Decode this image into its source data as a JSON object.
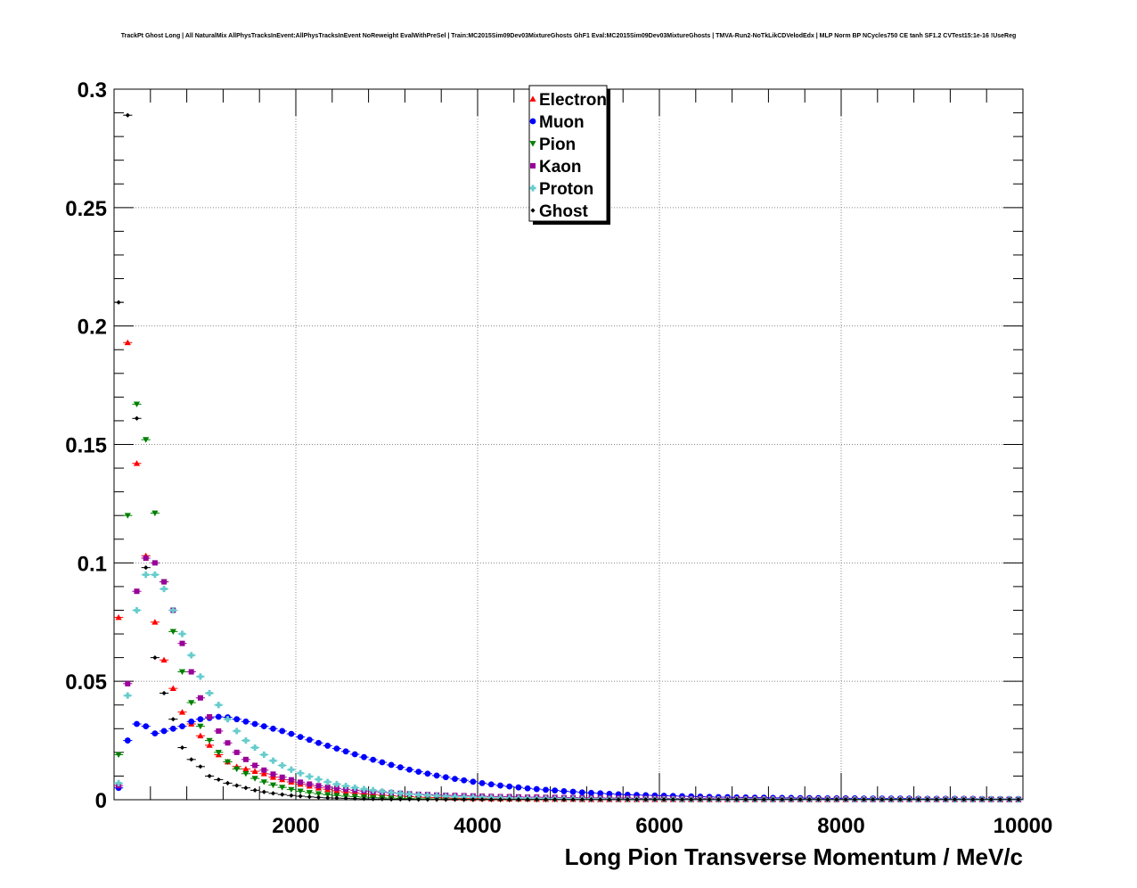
{
  "chart_data": {
    "type": "scatter",
    "title": "TrackPt Ghost Long | All NaturalMix AllPhysTracksInEvent:AllPhysTracksInEvent NoReweight EvalWithPreSel | Train:MC2015Sim09Dev03MixtureGhosts GhF1 Eval:MC2015Sim09Dev03MixtureGhosts | TMVA-Run2-NoTkLikCDVelodEdx | MLP Norm BP NCycles750 CE tanh SF1.2 CVTest15:1e-16 !UseReg",
    "xlabel": "Long Pion Transverse Momentum / MeV/c",
    "ylabel": "",
    "xlim": [
      0,
      10000
    ],
    "ylim": [
      0,
      0.3
    ],
    "grid": true,
    "legend_position": "top-center",
    "x_ticks": [
      2000,
      4000,
      6000,
      8000,
      10000
    ],
    "x_tick_labels": [
      "2000",
      "4000",
      "6000",
      "8000",
      "10000"
    ],
    "y_ticks": [
      0,
      0.05,
      0.1,
      0.15,
      0.2,
      0.25,
      0.3
    ],
    "y_tick_labels": [
      "0",
      "0.05",
      "0.1",
      "0.15",
      "0.2",
      "0.25",
      "0.3"
    ],
    "x": [
      50,
      150,
      250,
      350,
      450,
      550,
      650,
      750,
      850,
      950,
      1050,
      1150,
      1250,
      1350,
      1450,
      1550,
      1650,
      1750,
      1850,
      1950,
      2050,
      2150,
      2250,
      2350,
      2450,
      2550,
      2650,
      2750,
      2850,
      2950,
      3050,
      3150,
      3250,
      3350,
      3450,
      3550,
      3650,
      3750,
      3850,
      3950,
      4050,
      4150,
      4250,
      4350,
      4450,
      4550,
      4650,
      4750,
      4850,
      4950,
      5050,
      5150,
      5250,
      5350,
      5450,
      5550,
      5650,
      5750,
      5850,
      5950,
      6050,
      6150,
      6250,
      6350,
      6450,
      6550,
      6650,
      6750,
      6850,
      6950,
      7050,
      7150,
      7250,
      7350,
      7450,
      7550,
      7650,
      7750,
      7850,
      7950,
      8050,
      8150,
      8250,
      8350,
      8450,
      8550,
      8650,
      8750,
      8850,
      8950,
      9050,
      9150,
      9250,
      9350,
      9450,
      9550,
      9650,
      9750,
      9850,
      9950
    ],
    "series": [
      {
        "name": "Electron",
        "color": "#ff0000",
        "marker": "triangle-up",
        "values": [
          0.077,
          0.193,
          0.142,
          0.103,
          0.075,
          0.059,
          0.047,
          0.037,
          0.032,
          0.027,
          0.023,
          0.019,
          0.016,
          0.014,
          0.013,
          0.012,
          0.011,
          0.0095,
          0.0085,
          0.0075,
          0.0066,
          0.0058,
          0.005,
          0.0044,
          0.0038,
          0.0033,
          0.0029,
          0.0025,
          0.0022,
          0.0019,
          0.0017,
          0.0015,
          0.0013,
          0.0011,
          0.001,
          0.0009,
          0.0008,
          0.0007,
          0.0006,
          0.0005,
          0.0005,
          0.0004,
          0.0004,
          0.0003,
          0.0003,
          0.0003,
          0.0002,
          0.0002,
          0.0002,
          0.0002,
          0.0002,
          0.0001,
          0.0001,
          0.0001,
          0.0001,
          0.0001,
          0.0001,
          0.0001,
          0.0001,
          0.0001,
          0.0001,
          0.0001,
          0.0001,
          0.0001,
          0.0001,
          0.0001,
          0.0001,
          0.0001,
          0.0001,
          0.0001,
          0.0001,
          0.0001,
          0.0001,
          0.0001,
          0.0001,
          0.0001,
          0.0001,
          0.0001,
          0.0001,
          0.0001,
          0.0001,
          0.0001,
          0.0001,
          0.0001,
          0.0001,
          0.0001,
          0.0001,
          0.0001,
          0.0001,
          0.0001,
          0.0001,
          0.0001,
          0.0001,
          0.0001,
          0.0001,
          0.0001,
          0.0001,
          0.0001,
          0.0001,
          0.0001
        ]
      },
      {
        "name": "Muon",
        "color": "#0000ff",
        "marker": "circle",
        "values": [
          0.005,
          0.025,
          0.032,
          0.031,
          0.028,
          0.029,
          0.03,
          0.031,
          0.033,
          0.034,
          0.0345,
          0.035,
          0.0348,
          0.034,
          0.033,
          0.032,
          0.031,
          0.03,
          0.029,
          0.0278,
          0.0265,
          0.0253,
          0.024,
          0.0228,
          0.0216,
          0.0204,
          0.0192,
          0.018,
          0.0169,
          0.0158,
          0.0147,
          0.0137,
          0.0127,
          0.0118,
          0.011,
          0.0102,
          0.0095,
          0.0088,
          0.0082,
          0.0076,
          0.007,
          0.0065,
          0.006,
          0.0056,
          0.0052,
          0.0048,
          0.0045,
          0.0042,
          0.0039,
          0.0036,
          0.0034,
          0.0031,
          0.0029,
          0.0027,
          0.0025,
          0.0023,
          0.0021,
          0.002,
          0.0019,
          0.0018,
          0.0017,
          0.0016,
          0.0015,
          0.0014,
          0.0013,
          0.0012,
          0.0011,
          0.0011,
          0.001,
          0.001,
          0.0009,
          0.0009,
          0.0008,
          0.0008,
          0.0008,
          0.0007,
          0.0007,
          0.0007,
          0.0006,
          0.0006,
          0.0006,
          0.0006,
          0.0005,
          0.0005,
          0.0005,
          0.0005,
          0.0005,
          0.0005,
          0.0004,
          0.0004,
          0.0004,
          0.0004,
          0.0004,
          0.0004,
          0.0004,
          0.0003,
          0.0003,
          0.0003,
          0.0003,
          0.0003
        ]
      },
      {
        "name": "Pion",
        "color": "#008000",
        "marker": "triangle-down",
        "values": [
          0.019,
          0.12,
          0.167,
          0.152,
          0.121,
          0.092,
          0.071,
          0.054,
          0.041,
          0.031,
          0.025,
          0.02,
          0.016,
          0.013,
          0.011,
          0.009,
          0.0075,
          0.0062,
          0.0052,
          0.0043,
          0.0036,
          0.003,
          0.0025,
          0.0021,
          0.0018,
          0.0015,
          0.0013,
          0.0011,
          0.0009,
          0.0008,
          0.0007,
          0.0006,
          0.0005,
          0.0004,
          0.0004,
          0.0003,
          0.0003,
          0.0003,
          0.0002,
          0.0002,
          0.0002,
          0.0002,
          0.0001,
          0.0001,
          0.0001,
          0.0001,
          0.0001,
          0.0001,
          0.0001,
          0.0001,
          0.0001,
          0.0001,
          0.0001,
          0.0001,
          0.0001,
          0.0001,
          0.0001,
          0.0001,
          0.0001,
          0.0001,
          0.0001,
          0.0001,
          0.0001,
          0.0001,
          0.0001,
          0.0001,
          0.0001,
          0.0001,
          0.0001,
          0.0001,
          0.0001,
          0.0001,
          0.0001,
          0.0001,
          0.0001,
          0.0001,
          0.0001,
          0.0001,
          0.0001,
          0.0001,
          0.0001,
          0.0001,
          0.0001,
          0.0001,
          0.0001,
          0.0001,
          0.0001,
          0.0001,
          0.0001,
          0.0001,
          0.0001,
          0.0001,
          0.0001,
          0.0001,
          0.0001,
          0.0001,
          0.0001,
          0.0001,
          0.0001,
          0.0001
        ]
      },
      {
        "name": "Kaon",
        "color": "#990099",
        "marker": "square",
        "values": [
          0.006,
          0.049,
          0.088,
          0.102,
          0.1,
          0.092,
          0.08,
          0.066,
          0.054,
          0.043,
          0.035,
          0.029,
          0.024,
          0.02,
          0.017,
          0.0145,
          0.0125,
          0.0108,
          0.0095,
          0.0084,
          0.0074,
          0.0066,
          0.0059,
          0.0053,
          0.0048,
          0.0044,
          0.004,
          0.0037,
          0.0034,
          0.0031,
          0.0029,
          0.0027,
          0.0025,
          0.0023,
          0.0022,
          0.002,
          0.0019,
          0.0018,
          0.0017,
          0.0016,
          0.0015,
          0.0014,
          0.0013,
          0.0013,
          0.0012,
          0.0011,
          0.0011,
          0.001,
          0.001,
          0.0009,
          0.0009,
          0.0008,
          0.0008,
          0.0008,
          0.0007,
          0.0007,
          0.0007,
          0.0006,
          0.0006,
          0.0006,
          0.0006,
          0.0005,
          0.0005,
          0.0005,
          0.0005,
          0.0005,
          0.0004,
          0.0004,
          0.0004,
          0.0004,
          0.0004,
          0.0004,
          0.0003,
          0.0003,
          0.0003,
          0.0003,
          0.0003,
          0.0003,
          0.0003,
          0.0003,
          0.0003,
          0.0002,
          0.0002,
          0.0002,
          0.0002,
          0.0002,
          0.0002,
          0.0002,
          0.0002,
          0.0002,
          0.0002,
          0.0002,
          0.0002,
          0.0002,
          0.0002,
          0.0002,
          0.0002,
          0.0001,
          0.0001,
          0.0001
        ]
      },
      {
        "name": "Proton",
        "color": "#66cccc",
        "marker": "cross",
        "values": [
          0.007,
          0.044,
          0.08,
          0.095,
          0.095,
          0.089,
          0.08,
          0.07,
          0.061,
          0.052,
          0.045,
          0.04,
          0.034,
          0.029,
          0.025,
          0.022,
          0.019,
          0.0165,
          0.0145,
          0.0127,
          0.0112,
          0.0098,
          0.0086,
          0.0075,
          0.0066,
          0.0058,
          0.0051,
          0.0045,
          0.004,
          0.0035,
          0.0031,
          0.0027,
          0.0024,
          0.0021,
          0.0019,
          0.0017,
          0.0015,
          0.0013,
          0.0012,
          0.0011,
          0.001,
          0.0009,
          0.0008,
          0.0007,
          0.0006,
          0.0006,
          0.0005,
          0.0005,
          0.0004,
          0.0004,
          0.0004,
          0.0003,
          0.0003,
          0.0003,
          0.0003,
          0.0002,
          0.0002,
          0.0002,
          0.0002,
          0.0002,
          0.0002,
          0.0002,
          0.0001,
          0.0001,
          0.0001,
          0.0001,
          0.0001,
          0.0001,
          0.0001,
          0.0001,
          0.0001,
          0.0001,
          0.0001,
          0.0001,
          0.0001,
          0.0001,
          0.0001,
          0.0001,
          0.0001,
          0.0001,
          0.0001,
          0.0001,
          0.0001,
          0.0001,
          0.0001,
          0.0001,
          0.0001,
          0.0001,
          0.0001,
          0.0001,
          0.0001,
          0.0001,
          0.0001,
          0.0001,
          0.0001,
          0.0001,
          0.0001,
          0.0001,
          0.0001,
          0.0001
        ]
      },
      {
        "name": "Ghost",
        "color": "#000000",
        "marker": "star",
        "values": [
          0.21,
          0.289,
          0.161,
          0.098,
          0.06,
          0.045,
          0.034,
          0.022,
          0.017,
          0.014,
          0.01,
          0.0085,
          0.007,
          0.006,
          0.005,
          0.004,
          0.0033,
          0.0027,
          0.0022,
          0.0018,
          0.0015,
          0.0012,
          0.001,
          0.0008,
          0.0007,
          0.0006,
          0.0005,
          0.0004,
          0.0003,
          0.0003,
          0.0002,
          0.0002,
          0.0002,
          0.0001,
          0.0001,
          0.0001,
          0.0001,
          0.0001,
          0.0001,
          0.0001,
          0.0001,
          0.0001,
          0.0001,
          0.0001,
          0.0001,
          0.0001,
          0.0001,
          0.0001,
          0.0001,
          0.0001,
          0.0001,
          0.0001,
          0.0001,
          0.0001,
          0.0001,
          0.0001,
          0.0001,
          0.0001,
          0.0001,
          0.0001,
          0.0001,
          0.0001,
          0.0001,
          0.0001,
          0.0001,
          0.0001,
          0.0001,
          0.0001,
          0.0001,
          0.0001,
          0.0001,
          0.0001,
          0.0001,
          0.0001,
          0.0001,
          0.0001,
          0.0001,
          0.0001,
          0.0001,
          0.0001,
          0.0001,
          0.0001,
          0.0001,
          0.0001,
          0.0001,
          0.0001,
          0.0001,
          0.0001,
          0.0001,
          0.0001,
          0.0001,
          0.0001,
          0.0001,
          0.0001,
          0.0001,
          0.0001,
          0.0001,
          0.0001,
          0.0001,
          0.0001
        ]
      }
    ]
  }
}
